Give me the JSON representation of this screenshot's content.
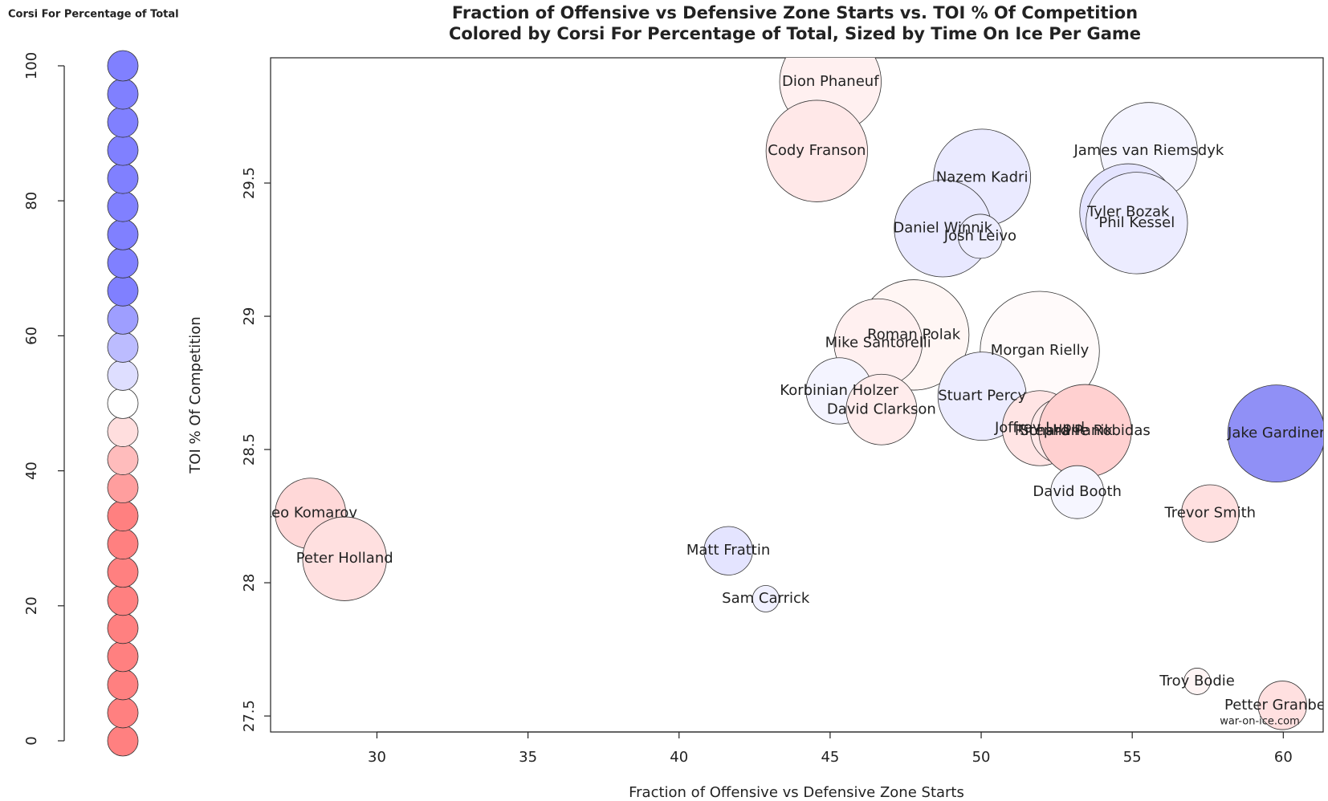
{
  "chart_data": {
    "type": "bubble",
    "title": "Fraction of Offensive vs Defensive Zone Starts vs. TOI % Of Competition",
    "subtitle": "Colored by Corsi For Percentage of Total, Sized by Time On Ice Per Game",
    "xlabel": "Fraction of Offensive vs Defensive Zone Starts",
    "ylabel": "TOI % Of Competition",
    "xlim": [
      26.48,
      61.32
    ],
    "ylim": [
      27.44,
      29.97
    ],
    "xticks": [
      30,
      35,
      40,
      45,
      50,
      55,
      60
    ],
    "yticks": [
      27.5,
      28.0,
      28.5,
      29.0,
      29.5
    ],
    "watermark": "war-on-ice.com",
    "points": [
      {
        "name": "Dion Phaneuf",
        "x": 45.01,
        "y": 29.88,
        "size": 23,
        "color": "#fff0f0"
      },
      {
        "name": "Cody Franson",
        "x": 44.56,
        "y": 29.62,
        "size": 23,
        "color": "#ffe8e8"
      },
      {
        "name": "Nazem Kadri",
        "x": 50.03,
        "y": 29.52,
        "size": 22,
        "color": "#eaeaff"
      },
      {
        "name": "James van Riemsdyk",
        "x": 55.55,
        "y": 29.62,
        "size": 22,
        "color": "#f4f4ff"
      },
      {
        "name": "Tyler Bozak",
        "x": 54.87,
        "y": 29.39,
        "size": 22,
        "color": "#e4e4ff"
      },
      {
        "name": "Phil Kessel",
        "x": 55.15,
        "y": 29.35,
        "size": 23,
        "color": "#ececff"
      },
      {
        "name": "Daniel Winnik",
        "x": 48.73,
        "y": 29.33,
        "size": 22,
        "color": "#e8e8ff"
      },
      {
        "name": "Josh Leivo",
        "x": 49.97,
        "y": 29.3,
        "size": 10,
        "color": "#ededff"
      },
      {
        "name": "Roman Polak",
        "x": 47.77,
        "y": 28.93,
        "size": 25,
        "color": "#fff6f4"
      },
      {
        "name": "Mike Santorelli",
        "x": 46.59,
        "y": 28.9,
        "size": 20,
        "color": "#fff0f0"
      },
      {
        "name": "Morgan Rielly",
        "x": 51.94,
        "y": 28.87,
        "size": 27,
        "color": "#fffafa"
      },
      {
        "name": "Korbinian Holzer",
        "x": 45.3,
        "y": 28.72,
        "size": 15,
        "color": "#f4f4ff"
      },
      {
        "name": "Stuart Percy",
        "x": 50.03,
        "y": 28.7,
        "size": 20,
        "color": "#ececff"
      },
      {
        "name": "David Clarkson",
        "x": 46.7,
        "y": 28.65,
        "size": 16,
        "color": "#ffecec"
      },
      {
        "name": "Jake Gardiner",
        "x": 59.77,
        "y": 28.56,
        "size": 22,
        "color": "#9090f6"
      },
      {
        "name": "Joffrey Lupul",
        "x": 51.94,
        "y": 28.58,
        "size": 17,
        "color": "#ffe4e4"
      },
      {
        "name": "Richard Panik",
        "x": 52.73,
        "y": 28.57,
        "size": 15,
        "color": "#ffe8e8"
      },
      {
        "name": "Stephane Robidas",
        "x": 53.44,
        "y": 28.57,
        "size": 21,
        "color": "#ffd0d0"
      },
      {
        "name": "David Booth",
        "x": 53.18,
        "y": 28.34,
        "size": 12,
        "color": "#f6f6ff"
      },
      {
        "name": "Trevor Smith",
        "x": 57.58,
        "y": 28.26,
        "size": 13,
        "color": "#ffe0e0"
      },
      {
        "name": "Leo Komarov",
        "x": 27.8,
        "y": 28.26,
        "size": 16,
        "color": "#ffd8d8"
      },
      {
        "name": "Peter Holland",
        "x": 28.93,
        "y": 28.09,
        "size": 19,
        "color": "#ffe0e0"
      },
      {
        "name": "Matt Frattin",
        "x": 41.63,
        "y": 28.12,
        "size": 11,
        "color": "#e4e4ff"
      },
      {
        "name": "Sam Carrick",
        "x": 42.87,
        "y": 27.94,
        "size": 6,
        "color": "#f0f0ff"
      },
      {
        "name": "Troy Bodie",
        "x": 57.15,
        "y": 27.63,
        "size": 6,
        "color": "#fff4f4"
      },
      {
        "name": "Petter Granberg",
        "x": 59.97,
        "y": 27.54,
        "size": 11,
        "color": "#ffe0e0"
      }
    ],
    "legend": {
      "title": "Corsi For Percentage of Total",
      "ylim": [
        0,
        100
      ],
      "yticks": [
        0,
        20,
        40,
        60,
        80,
        100
      ],
      "levels": [
        0,
        4.17,
        8.33,
        12.5,
        16.67,
        20.83,
        25,
        29.17,
        33.33,
        37.5,
        41.67,
        45.83,
        50,
        54.17,
        58.33,
        62.5,
        66.67,
        70.83,
        75,
        79.17,
        83.33,
        87.5,
        91.67,
        95.83,
        100
      ],
      "colors": [
        "#ff8080",
        "#ff8080",
        "#ff8080",
        "#ff8080",
        "#ff8080",
        "#ff8080",
        "#ff8080",
        "#ff8080",
        "#ff8080",
        "#ff9e9e",
        "#ffbcbc",
        "#ffdede",
        "#ffffff",
        "#dedeff",
        "#bcbcff",
        "#9e9eff",
        "#8080ff",
        "#8080ff",
        "#8080ff",
        "#8080ff",
        "#8080ff",
        "#8080ff",
        "#8080ff",
        "#8080ff",
        "#8080ff"
      ]
    }
  }
}
